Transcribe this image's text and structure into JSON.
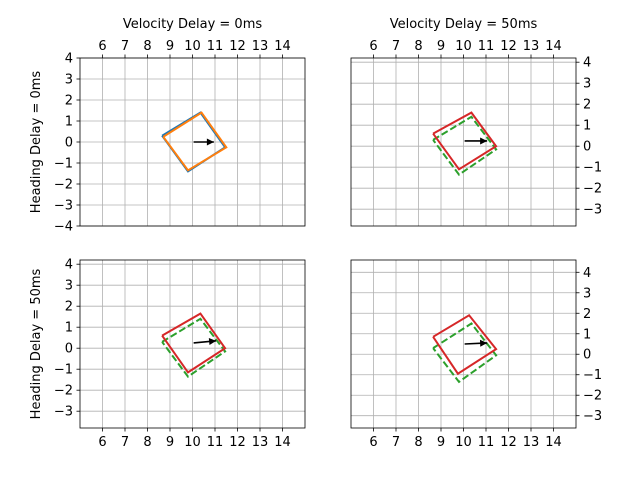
{
  "colors": {
    "reference": "#1f77b4",
    "velocity_only": "#2ca02c",
    "heading_outline": "#d62728",
    "no_delay": "#ff7f0e",
    "arrow": "#000000",
    "grid": "#b0b0b0"
  },
  "chart_data": [
    {
      "type": "line",
      "title": "Velocity Delay = 0ms",
      "ylabel": "Heading Delay = 0ms",
      "xlim": [
        5,
        15
      ],
      "ylim": [
        -4,
        4
      ],
      "xticks": [
        "6",
        "7",
        "8",
        "9",
        "10",
        "11",
        "12",
        "13",
        "14"
      ],
      "yticks": [
        "4",
        "3",
        "2",
        "1",
        "0",
        "−1",
        "−2",
        "−3",
        "−4"
      ],
      "x_axis_position": "top",
      "y_axis_position": "left",
      "grid": true,
      "series": [
        {
          "style": "solid",
          "color": "#1f77b4",
          "x": [
            8.65,
            10.35,
            11.45,
            9.8,
            8.65
          ],
          "y": [
            0.3,
            1.4,
            -0.25,
            -1.4,
            0.3
          ]
        },
        {
          "style": "solid",
          "color": "#ff7f0e",
          "x": [
            8.7,
            10.4,
            11.5,
            9.8,
            8.7
          ],
          "y": [
            0.25,
            1.4,
            -0.25,
            -1.35,
            0.25
          ]
        }
      ],
      "arrows": [
        {
          "x": 10.05,
          "y": 0.0,
          "dx": 0.9,
          "dy": 0.0
        }
      ]
    },
    {
      "type": "line",
      "title": "Velocity Delay = 50ms",
      "ylabel": "",
      "xlim": [
        5,
        15
      ],
      "ylim": [
        -3.8,
        4.2
      ],
      "xticks": [
        "6",
        "7",
        "8",
        "9",
        "10",
        "11",
        "12",
        "13",
        "14"
      ],
      "yticks": [
        "4",
        "3",
        "2",
        "1",
        "0",
        "−1",
        "−2",
        "−3"
      ],
      "x_axis_position": "top",
      "y_axis_position": "right",
      "grid": true,
      "series": [
        {
          "style": "dashed",
          "color": "#2ca02c",
          "x": [
            8.65,
            10.35,
            11.45,
            9.8,
            8.65
          ],
          "y": [
            0.3,
            1.4,
            -0.15,
            -1.35,
            0.3
          ]
        },
        {
          "style": "solid",
          "color": "#d62728",
          "x": [
            8.65,
            10.35,
            11.45,
            9.8,
            8.65
          ],
          "y": [
            0.6,
            1.6,
            0.0,
            -1.1,
            0.6
          ]
        }
      ],
      "arrows": [
        {
          "x": 10.05,
          "y": 0.25,
          "dx": 1.0,
          "dy": 0.0
        }
      ]
    },
    {
      "type": "line",
      "title": "",
      "ylabel": "Heading Delay = 50ms",
      "xlim": [
        5,
        15
      ],
      "ylim": [
        -3.8,
        4.2
      ],
      "xticks": [
        "6",
        "7",
        "8",
        "9",
        "10",
        "11",
        "12",
        "13",
        "14"
      ],
      "yticks": [
        "4",
        "3",
        "2",
        "1",
        "0",
        "−1",
        "−2",
        "−3"
      ],
      "x_axis_position": "bottom",
      "y_axis_position": "left",
      "grid": true,
      "series": [
        {
          "style": "dashed",
          "color": "#2ca02c",
          "x": [
            8.65,
            10.35,
            11.45,
            9.8,
            8.65
          ],
          "y": [
            0.3,
            1.4,
            -0.15,
            -1.35,
            0.3
          ]
        },
        {
          "style": "solid",
          "color": "#d62728",
          "x": [
            8.65,
            10.35,
            11.45,
            9.8,
            8.65
          ],
          "y": [
            0.6,
            1.65,
            0.0,
            -1.15,
            0.6
          ]
        }
      ],
      "arrows": [
        {
          "x": 10.05,
          "y": 0.25,
          "dx": 1.0,
          "dy": 0.1
        }
      ]
    },
    {
      "type": "line",
      "title": "",
      "ylabel": "",
      "xlim": [
        5,
        15
      ],
      "ylim": [
        -3.6,
        4.6
      ],
      "xticks": [
        "6",
        "7",
        "8",
        "9",
        "10",
        "11",
        "12",
        "13",
        "14"
      ],
      "yticks": [
        "4",
        "3",
        "2",
        "1",
        "0",
        "−1",
        "−2",
        "−3"
      ],
      "x_axis_position": "bottom",
      "y_axis_position": "right",
      "grid": true,
      "series": [
        {
          "style": "dashed",
          "color": "#2ca02c",
          "x": [
            8.65,
            10.35,
            11.45,
            9.8,
            8.65
          ],
          "y": [
            0.3,
            1.5,
            -0.05,
            -1.35,
            0.3
          ]
        },
        {
          "style": "solid",
          "color": "#d62728",
          "x": [
            8.65,
            10.25,
            11.45,
            9.75,
            8.65
          ],
          "y": [
            0.85,
            1.9,
            0.25,
            -0.95,
            0.85
          ]
        }
      ],
      "arrows": [
        {
          "x": 10.05,
          "y": 0.5,
          "dx": 1.0,
          "dy": 0.05
        }
      ]
    }
  ]
}
